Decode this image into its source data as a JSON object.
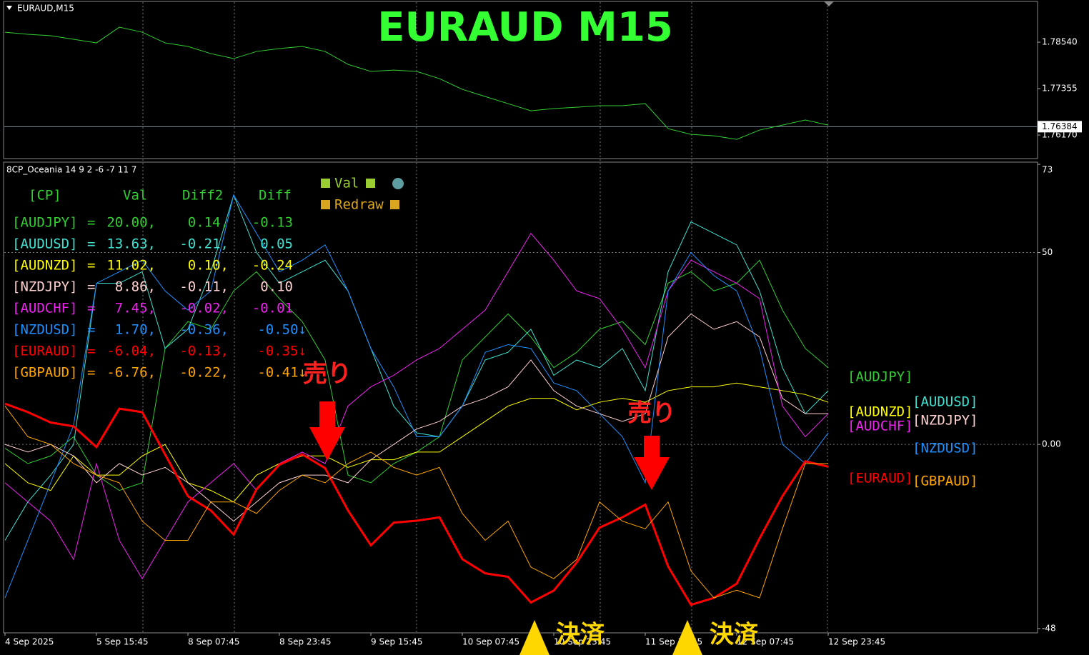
{
  "chart_data": [
    {
      "type": "line",
      "title": "EURAUD,M15",
      "heading": "EURAUD  M15",
      "series": [
        {
          "name": "EURAUD",
          "color": "#32cd32",
          "values": [
            1.78795,
            1.78741,
            1.78704,
            1.78613,
            1.78522,
            1.78923,
            1.78795,
            1.78522,
            1.78431,
            1.78248,
            1.78121,
            1.78303,
            1.78376,
            1.78431,
            1.78303,
            1.77975,
            1.77793,
            1.77829,
            1.77793,
            1.7761,
            1.77337,
            1.77154,
            1.76972,
            1.7679,
            1.76845,
            1.76881,
            1.76918,
            1.76918,
            1.76972,
            1.76334,
            1.76188,
            1.76152,
            1.76061,
            1.76298,
            1.76425,
            1.76553,
            1.76425
          ]
        }
      ],
      "current_price": 1.76384,
      "ylim": [
        1.7557,
        1.7958
      ],
      "yticks": [
        {
          "value": 1.7854,
          "label": "1.78540"
        },
        1.77355,
        {
          "value": 1.7617,
          "label": "1.76170"
        }
      ]
    },
    {
      "type": "line",
      "title": "8CP_Oceania 14 9 2 -6 -7 11 7",
      "categories": [
        "4 Sep 2025",
        null,
        null,
        null,
        "5 Sep 15:45",
        null,
        null,
        null,
        "8 Sep 07:45",
        null,
        null,
        null,
        "8 Sep 23:45",
        null,
        null,
        null,
        "9 Sep 15:45",
        null,
        null,
        null,
        "10 Sep 07:45",
        null,
        null,
        null,
        "10 Sep 23:45",
        null,
        null,
        null,
        "11 Sep 15:45",
        null,
        null,
        null,
        "12 Sep 07:45",
        null,
        null,
        null,
        "12 Sep 23:45"
      ],
      "series": [
        {
          "name": "[AUDJPY]",
          "color": "#32cd32",
          "values": [
            -1,
            -5,
            -3,
            2,
            -8,
            -12,
            -10,
            25,
            32,
            30,
            40,
            45,
            38,
            32,
            22,
            -8,
            -10,
            -5,
            -2,
            2,
            22,
            28,
            34,
            28,
            20,
            24,
            30,
            32,
            26,
            42,
            45,
            40,
            42,
            48,
            35,
            25,
            20
          ]
        },
        {
          "name": "[AUDUSD]",
          "color": "#40e0d0",
          "values": [
            -25,
            -15,
            -8,
            0,
            42,
            42,
            45,
            25,
            30,
            45,
            65,
            50,
            42,
            45,
            48,
            40,
            25,
            10,
            3,
            2,
            10,
            22,
            24,
            30,
            18,
            22,
            20,
            25,
            14,
            45,
            58,
            55,
            52,
            40,
            20,
            8,
            14
          ]
        },
        {
          "name": "[AUDNZD]",
          "color": "#ffff00",
          "values": [
            -5,
            -10,
            -12,
            -3,
            -8,
            -8,
            -3,
            0,
            -10,
            -12,
            -15,
            -8,
            -5,
            -3,
            -3,
            -6,
            -4,
            -4,
            -2,
            -2,
            2,
            6,
            10,
            12,
            12,
            9,
            11,
            12,
            11,
            14,
            15,
            15,
            16,
            15,
            14,
            13,
            11
          ]
        },
        {
          "name": "[NZDJPY]",
          "color": "#ffd0d0",
          "values": [
            0,
            -2,
            0,
            -3,
            -10,
            -5,
            -8,
            -6,
            -10,
            -15,
            -20,
            -15,
            -10,
            -8,
            -8,
            -10,
            -4,
            0,
            4,
            6,
            10,
            12,
            15,
            22,
            14,
            10,
            8,
            6,
            8,
            28,
            34,
            30,
            32,
            28,
            12,
            8,
            8
          ]
        },
        {
          "name": "[AUDCHF]",
          "color": "#ee22ee",
          "values": [
            -10,
            -15,
            -20,
            -30,
            -5,
            -25,
            -35,
            -25,
            -15,
            -10,
            -5,
            -12,
            -5,
            -2,
            -5,
            10,
            15,
            18,
            22,
            25,
            30,
            35,
            45,
            55,
            48,
            40,
            38,
            30,
            20,
            40,
            48,
            45,
            42,
            38,
            10,
            2,
            8
          ]
        },
        {
          "name": "[NZDUSD]",
          "color": "#1e90ff",
          "values": [
            -40,
            -25,
            -10,
            5,
            42,
            45,
            48,
            40,
            35,
            40,
            65,
            55,
            45,
            48,
            52,
            40,
            25,
            15,
            2,
            2,
            10,
            24,
            26,
            25,
            16,
            14,
            8,
            2,
            -10,
            40,
            50,
            44,
            40,
            25,
            0,
            -5,
            3
          ]
        },
        {
          "name": "[EURAUD]",
          "color": "#ff0000",
          "values": [
            10.6,
            8.4,
            5.7,
            4.7,
            -0.7,
            9.3,
            8.4,
            -2.6,
            -13.5,
            -17.2,
            -23.5,
            -11.7,
            -5.3,
            -2.6,
            -6.2,
            -17.2,
            -26.3,
            -20.4,
            -19.9,
            -19,
            -29.9,
            -33.6,
            -34.5,
            -41.2,
            -38.1,
            -30.8,
            -21.7,
            -19,
            -15.7,
            -31.8,
            -41.8,
            -40,
            -36.3,
            -24.5,
            -13.5,
            -4.4,
            -5.8
          ]
        },
        {
          "name": "[GBPAUD]",
          "color": "#ffa500",
          "values": [
            10,
            2,
            0,
            -5,
            -8,
            -10,
            -20,
            -25,
            -25,
            -15,
            -15,
            -18,
            -12,
            -8,
            -10,
            -5,
            -2,
            -6,
            -8,
            -6,
            -18,
            -25,
            -20,
            -32,
            -35,
            -30,
            -15,
            -20,
            -22,
            -15,
            -33,
            -40,
            -38,
            -40,
            -22,
            -5,
            -5
          ]
        }
      ],
      "ylim": [
        -48,
        73
      ],
      "yticks": [
        73,
        50,
        {
          "value": 0,
          "label": "0.00"
        },
        -48
      ],
      "grid": true,
      "indicator_legend": [
        "Val",
        "Redraw"
      ],
      "annotations": [
        "売り",
        "売り",
        "決済",
        "決済"
      ]
    }
  ],
  "table": {
    "columns": [
      "[CP]",
      "Val",
      "Diff2",
      "Diff"
    ],
    "rows": [
      [
        "[AUDJPY]",
        "=",
        "20.00,",
        "0.14,",
        "-0.13"
      ],
      [
        "[AUDUSD]",
        "=",
        "13.63,",
        "-0.21,",
        "0.05"
      ],
      [
        "[AUDNZD]",
        "=",
        "11.02,",
        "0.10,",
        "-0.24"
      ],
      [
        "[NZDJPY]",
        "=",
        "8.86,",
        "-0.11,",
        "0.10"
      ],
      [
        "[AUDCHF]",
        "=",
        "7.45,",
        "-0.02,",
        "-0.01"
      ],
      [
        "[NZDUSD]",
        "=",
        "1.70,",
        "-0.36,",
        "-0.50↓"
      ],
      [
        "[EURAUD]",
        "=",
        "-6.04,",
        "-0.13,",
        "-0.35↓"
      ],
      [
        "[GBPAUD]",
        "=",
        "-6.76,",
        "-0.22,",
        "-0.41↓"
      ]
    ]
  }
}
